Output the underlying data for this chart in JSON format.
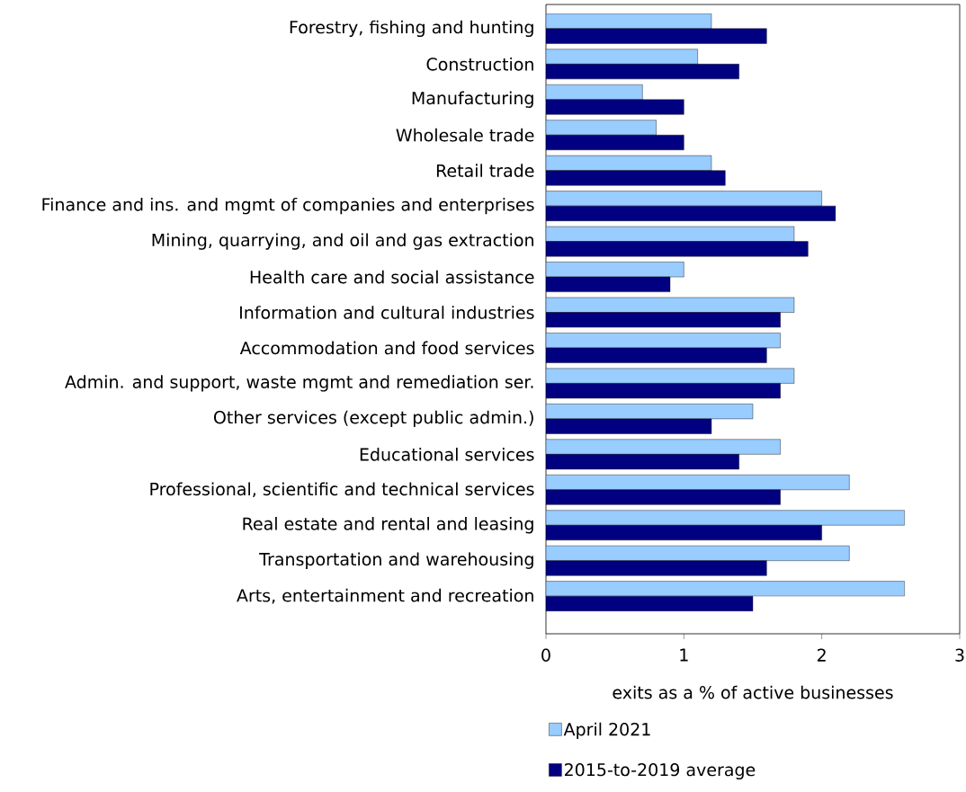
{
  "chart_data": {
    "type": "bar",
    "orientation": "horizontal",
    "xlabel": "exits as a % of active businesses",
    "categories": [
      "Forestry, fishing and hunting",
      "Construction",
      "Manufacturing",
      "Wholesale trade",
      "Retail trade",
      "Finance and ins. and mgmt of companies and enterprises",
      "Mining, quarrying, and oil and gas extraction",
      "Health care and social assistance",
      "Information and cultural industries",
      "Accommodation and food services",
      "Admin. and support, waste mgmt and remediation ser.",
      "Other services (except public admin.)",
      "Educational services",
      "Professional, scientific and technical services",
      "Real estate and rental and leasing",
      "Transportation and warehousing",
      "Arts, entertainment and recreation"
    ],
    "series": [
      {
        "name": "April 2021",
        "color": "#99ccff",
        "values": [
          1.2,
          1.1,
          0.7,
          0.8,
          1.2,
          2.0,
          1.8,
          1.0,
          1.8,
          1.7,
          1.8,
          1.5,
          1.7,
          2.2,
          2.6,
          2.2,
          2.6
        ]
      },
      {
        "name": "2015-to-2019 average",
        "color": "#000080",
        "values": [
          1.6,
          1.4,
          1.0,
          1.0,
          1.3,
          2.1,
          1.9,
          0.9,
          1.7,
          1.6,
          1.7,
          1.2,
          1.4,
          1.7,
          2.0,
          1.6,
          1.5
        ]
      }
    ],
    "xlim": [
      0,
      3
    ],
    "xticks": [
      0,
      1,
      2,
      3
    ],
    "grid": false,
    "legend": "bottom"
  }
}
